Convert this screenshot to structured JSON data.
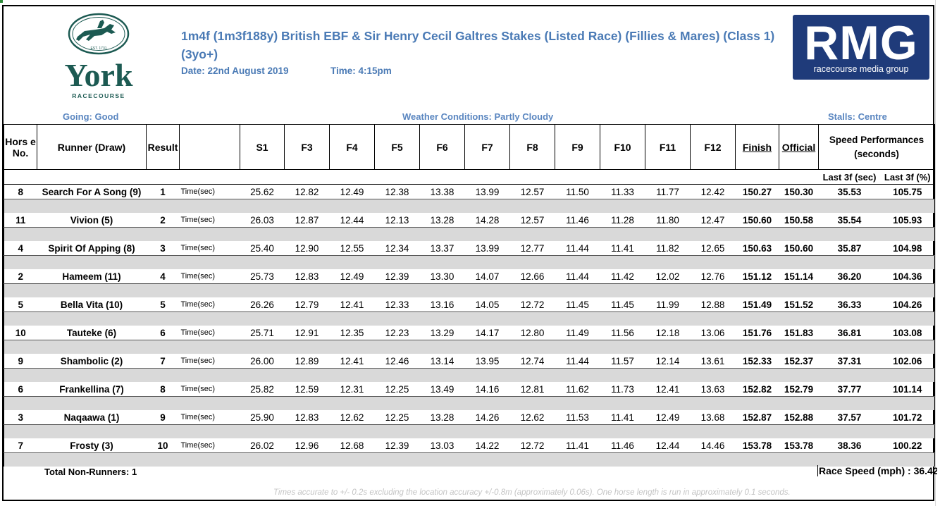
{
  "race": {
    "title": "1m4f (1m3f188y) British EBF & Sir Henry Cecil Galtres Stakes (Listed Race) (Fillies & Mares) (Class 1) (3yo+)",
    "date": "Date: 22nd August 2019",
    "time": "Time: 4:15pm"
  },
  "logos": {
    "york_name": "York",
    "york_sub": "RACECOURSE",
    "york_est": "EST. 1731",
    "rmg_letters": "RMG",
    "rmg_sub": "racecourse media group"
  },
  "conditions": {
    "going": "Going: Good",
    "weather": "Weather Conditions: Partly Cloudy",
    "stalls": "Stalls: Centre"
  },
  "columns": {
    "horse_no": "Hors e No.",
    "runner": "Runner (Draw)",
    "result": "Result",
    "sectionals": [
      "S1",
      "F3",
      "F4",
      "F5",
      "F6",
      "F7",
      "F8",
      "F9",
      "F10",
      "F11",
      "F12"
    ],
    "finish": "Finish",
    "official": "Official",
    "speed": "Speed Performances (seconds)",
    "last3f_sec": "Last 3f (sec)",
    "last3f_pct": "Last 3f (%)"
  },
  "time_label": "Time(sec)",
  "runners": [
    {
      "no": "8",
      "name": "Search For A Song (9)",
      "result": "1",
      "splits": [
        "25.62",
        "12.82",
        "12.49",
        "12.38",
        "13.38",
        "13.99",
        "12.57",
        "11.50",
        "11.33",
        "11.77",
        "12.42"
      ],
      "finish": "150.27",
      "official": "150.30",
      "l3s": "35.53",
      "l3p": "105.75"
    },
    {
      "no": "11",
      "name": "Vivion (5)",
      "result": "2",
      "splits": [
        "26.03",
        "12.87",
        "12.44",
        "12.13",
        "13.28",
        "14.28",
        "12.57",
        "11.46",
        "11.28",
        "11.80",
        "12.47"
      ],
      "finish": "150.60",
      "official": "150.58",
      "l3s": "35.54",
      "l3p": "105.93"
    },
    {
      "no": "4",
      "name": "Spirit Of Apping (8)",
      "result": "3",
      "splits": [
        "25.40",
        "12.90",
        "12.55",
        "12.34",
        "13.37",
        "13.99",
        "12.77",
        "11.44",
        "11.41",
        "11.82",
        "12.65"
      ],
      "finish": "150.63",
      "official": "150.60",
      "l3s": "35.87",
      "l3p": "104.98"
    },
    {
      "no": "2",
      "name": "Hameem (11)",
      "result": "4",
      "splits": [
        "25.73",
        "12.83",
        "12.49",
        "12.39",
        "13.30",
        "14.07",
        "12.66",
        "11.44",
        "11.42",
        "12.02",
        "12.76"
      ],
      "finish": "151.12",
      "official": "151.14",
      "l3s": "36.20",
      "l3p": "104.36"
    },
    {
      "no": "5",
      "name": "Bella Vita (10)",
      "result": "5",
      "splits": [
        "26.26",
        "12.79",
        "12.41",
        "12.33",
        "13.16",
        "14.05",
        "12.72",
        "11.45",
        "11.45",
        "11.99",
        "12.88"
      ],
      "finish": "151.49",
      "official": "151.52",
      "l3s": "36.33",
      "l3p": "104.26"
    },
    {
      "no": "10",
      "name": "Tauteke (6)",
      "result": "6",
      "splits": [
        "25.71",
        "12.91",
        "12.35",
        "12.23",
        "13.29",
        "14.17",
        "12.80",
        "11.49",
        "11.56",
        "12.18",
        "13.06"
      ],
      "finish": "151.76",
      "official": "151.83",
      "l3s": "36.81",
      "l3p": "103.08"
    },
    {
      "no": "9",
      "name": "Shambolic (2)",
      "result": "7",
      "splits": [
        "26.00",
        "12.89",
        "12.41",
        "12.46",
        "13.14",
        "13.95",
        "12.74",
        "11.44",
        "11.57",
        "12.14",
        "13.61"
      ],
      "finish": "152.33",
      "official": "152.37",
      "l3s": "37.31",
      "l3p": "102.06"
    },
    {
      "no": "6",
      "name": "Frankellina (7)",
      "result": "8",
      "splits": [
        "25.82",
        "12.59",
        "12.31",
        "12.25",
        "13.49",
        "14.16",
        "12.81",
        "11.62",
        "11.73",
        "12.41",
        "13.63"
      ],
      "finish": "152.82",
      "official": "152.79",
      "l3s": "37.77",
      "l3p": "101.14"
    },
    {
      "no": "3",
      "name": "Naqaawa (1)",
      "result": "9",
      "splits": [
        "25.90",
        "12.83",
        "12.62",
        "12.25",
        "13.28",
        "14.26",
        "12.62",
        "11.53",
        "11.41",
        "12.49",
        "13.68"
      ],
      "finish": "152.87",
      "official": "152.88",
      "l3s": "37.57",
      "l3p": "101.72"
    },
    {
      "no": "7",
      "name": "Frosty (3)",
      "result": "10",
      "splits": [
        "26.02",
        "12.96",
        "12.68",
        "12.39",
        "13.03",
        "14.22",
        "12.72",
        "11.41",
        "11.46",
        "12.44",
        "14.46"
      ],
      "finish": "153.78",
      "official": "153.78",
      "l3s": "38.36",
      "l3p": "100.22"
    }
  ],
  "footer": {
    "non_runners": "Total Non-Runners: 1",
    "race_speed": "Race Speed (mph) : 36.42",
    "note": "Times accurate to +/- 0.2s excluding the location accuracy +/-0.8m (approximately 0.06s). One horse length is run in approximately 0.1 seconds."
  },
  "colors": {
    "title_blue": "#4a7ab5",
    "rmg_blue": "#1f3b7a",
    "york_green": "#1c5a52",
    "row_gray": "#d9d9d9"
  }
}
